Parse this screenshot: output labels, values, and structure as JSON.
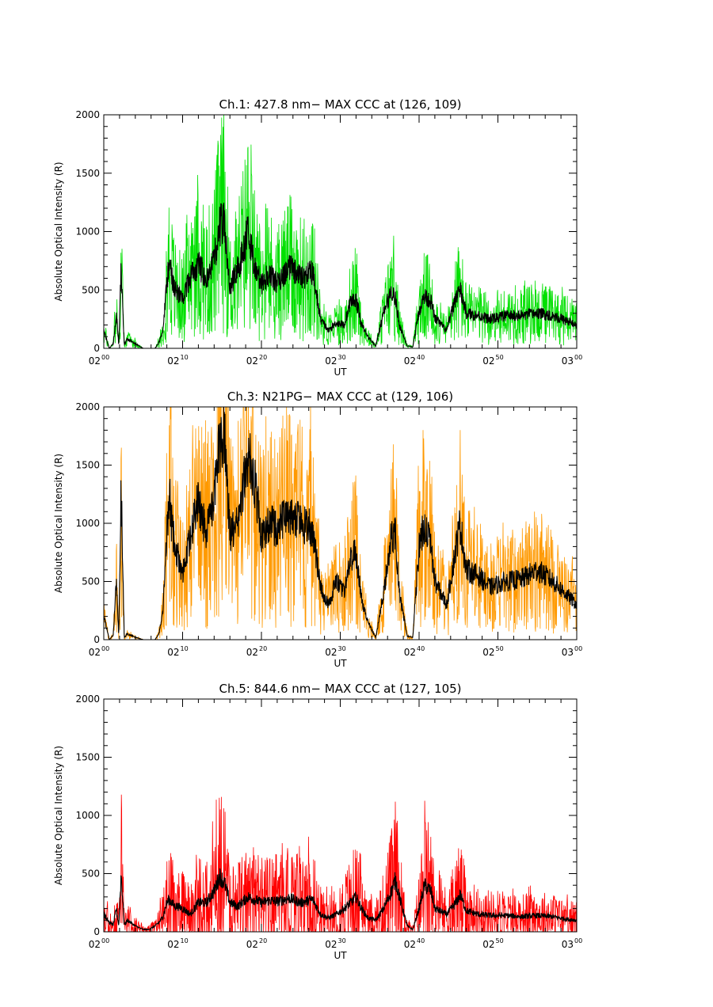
{
  "chart_data": [
    {
      "type": "line",
      "title": "Ch.1: 427.8 nm− MAX CCC at (126, 109)",
      "xlabel": "UT",
      "ylabel": "Absolute Optical Intensity (R)",
      "xlim_minutes": [
        0,
        60
      ],
      "ylim": [
        0,
        2000
      ],
      "yticks": [
        "0",
        "500",
        "1000",
        "1500",
        "2000"
      ],
      "xticks": [
        {
          "hour": "02",
          "min": "00"
        },
        {
          "hour": "02",
          "min": "10"
        },
        {
          "hour": "02",
          "min": "20"
        },
        {
          "hour": "02",
          "min": "30"
        },
        {
          "hour": "02",
          "min": "40"
        },
        {
          "hour": "02",
          "min": "50"
        },
        {
          "hour": "03",
          "min": "00"
        }
      ],
      "noise_color": "#00e000",
      "series": [
        {
          "name": "smoothed",
          "color": "#000000",
          "x": [
            0,
            0.7,
            1.2,
            1.6,
            1.9,
            2.2,
            2.6,
            3,
            4,
            5,
            5.7,
            6.5,
            7,
            7.5,
            8,
            8.3,
            8.6,
            9,
            9.3,
            10,
            11,
            12,
            13,
            14,
            14.7,
            15.3,
            16,
            17,
            18.3,
            19,
            20,
            21,
            22,
            23.5,
            25,
            26.5,
            27.5,
            28.5,
            29.5,
            30.5,
            31.3,
            32,
            32.7,
            33.5,
            34.5,
            35.5,
            36.5,
            37,
            37.5,
            38.5,
            39.2,
            40,
            40.7,
            41.5,
            42,
            43.5,
            44.7,
            45.2,
            46,
            47.5,
            49,
            51,
            53,
            55,
            57,
            58.5,
            60
          ],
          "values": [
            150,
            0,
            40,
            300,
            20,
            700,
            30,
            80,
            40,
            0,
            0,
            0,
            50,
            150,
            560,
            750,
            620,
            500,
            480,
            420,
            620,
            720,
            600,
            750,
            1050,
            1100,
            520,
            680,
            1000,
            750,
            550,
            640,
            550,
            700,
            600,
            650,
            250,
            150,
            220,
            200,
            400,
            420,
            200,
            100,
            20,
            300,
            500,
            420,
            200,
            20,
            10,
            320,
            450,
            400,
            260,
            150,
            450,
            500,
            300,
            280,
            250,
            280,
            280,
            300,
            280,
            240,
            200
          ]
        },
        {
          "name": "raw",
          "color": "#00e000",
          "x": [
            0,
            0.7,
            1.2,
            1.6,
            1.9,
            2.2,
            2.6,
            3,
            4,
            5,
            5.7,
            6.5,
            7,
            7.5,
            8,
            8.3,
            8.6,
            9,
            9.3,
            10,
            11,
            12,
            13,
            14,
            14.7,
            15.3,
            16,
            17,
            18.3,
            19,
            20,
            21,
            22,
            23.5,
            25,
            26.5,
            27.5,
            28.5,
            29.5,
            30.5,
            31.3,
            32,
            32.7,
            33.5,
            34.5,
            35.5,
            36.5,
            37,
            37.5,
            38.5,
            39.2,
            40,
            40.7,
            41.5,
            42,
            43.5,
            44.7,
            45.2,
            46,
            47.5,
            49,
            51,
            53,
            55,
            57,
            58.5,
            60
          ],
          "values": [
            150,
            0,
            40,
            300,
            20,
            700,
            30,
            80,
            40,
            0,
            0,
            0,
            50,
            150,
            560,
            750,
            620,
            500,
            480,
            420,
            620,
            720,
            600,
            750,
            1050,
            1100,
            520,
            680,
            1000,
            750,
            550,
            640,
            550,
            700,
            600,
            650,
            250,
            150,
            220,
            200,
            400,
            420,
            200,
            100,
            20,
            300,
            500,
            420,
            200,
            20,
            10,
            320,
            450,
            400,
            260,
            150,
            450,
            500,
            300,
            280,
            250,
            280,
            280,
            300,
            280,
            240,
            200
          ]
        }
      ]
    },
    {
      "type": "line",
      "title": "Ch.3: N21PG− MAX CCC at (129, 106)",
      "xlabel": "UT",
      "ylabel": "Absolute Optical Intensity (R)",
      "xlim_minutes": [
        0,
        60
      ],
      "ylim": [
        0,
        2000
      ],
      "yticks": [
        "0",
        "500",
        "1000",
        "1500",
        "2000"
      ],
      "xticks": [
        {
          "hour": "02",
          "min": "00"
        },
        {
          "hour": "02",
          "min": "10"
        },
        {
          "hour": "02",
          "min": "20"
        },
        {
          "hour": "02",
          "min": "30"
        },
        {
          "hour": "02",
          "min": "40"
        },
        {
          "hour": "02",
          "min": "50"
        },
        {
          "hour": "03",
          "min": "00"
        }
      ],
      "noise_color": "#ff9900",
      "series": [
        {
          "name": "smoothed",
          "color": "#000000",
          "x": [
            0,
            0.7,
            1.2,
            1.6,
            1.9,
            2.2,
            2.6,
            3,
            4,
            5,
            5.7,
            6.5,
            7,
            7.5,
            8,
            8.3,
            8.6,
            9,
            9.3,
            10,
            11,
            12,
            13,
            14,
            14.7,
            15.3,
            16,
            17,
            18.3,
            19,
            20,
            21,
            22,
            23.5,
            25,
            26.5,
            27.5,
            28.5,
            29.5,
            30.5,
            31.3,
            32,
            32.7,
            33.5,
            34.5,
            35.5,
            36.5,
            37,
            37.5,
            38.5,
            39.2,
            40,
            40.7,
            41.5,
            42,
            43.5,
            44.7,
            45.2,
            46,
            47.5,
            49,
            51,
            53,
            55,
            57,
            58.5,
            60
          ],
          "values": [
            200,
            0,
            40,
            500,
            20,
            1300,
            20,
            50,
            20,
            0,
            0,
            0,
            50,
            250,
            900,
            1300,
            1000,
            800,
            750,
            550,
            900,
            1200,
            900,
            1200,
            1700,
            1800,
            900,
            1000,
            1600,
            1450,
            900,
            1000,
            950,
            1100,
            1000,
            950,
            450,
            300,
            500,
            400,
            700,
            750,
            350,
            150,
            20,
            400,
            900,
            900,
            400,
            30,
            20,
            800,
            1000,
            800,
            500,
            300,
            800,
            1000,
            600,
            550,
            450,
            500,
            520,
            600,
            500,
            400,
            300
          ]
        },
        {
          "name": "raw",
          "color": "#ff9900",
          "x": [
            0,
            0.7,
            1.2,
            1.6,
            1.9,
            2.2,
            2.6,
            3,
            4,
            5,
            5.7,
            6.5,
            7,
            7.5,
            8,
            8.3,
            8.6,
            9,
            9.3,
            10,
            11,
            12,
            13,
            14,
            14.7,
            15.3,
            16,
            17,
            18.3,
            19,
            20,
            21,
            22,
            23.5,
            25,
            26.5,
            27.5,
            28.5,
            29.5,
            30.5,
            31.3,
            32,
            32.7,
            33.5,
            34.5,
            35.5,
            36.5,
            37,
            37.5,
            38.5,
            39.2,
            40,
            40.7,
            41.5,
            42,
            43.5,
            44.7,
            45.2,
            46,
            47.5,
            49,
            51,
            53,
            55,
            57,
            58.5,
            60
          ],
          "values": [
            200,
            0,
            40,
            500,
            20,
            1300,
            20,
            50,
            20,
            0,
            0,
            0,
            50,
            250,
            900,
            1300,
            1000,
            800,
            750,
            550,
            900,
            1200,
            900,
            1200,
            1700,
            1800,
            900,
            1000,
            1600,
            1450,
            900,
            1000,
            950,
            1100,
            1000,
            950,
            450,
            300,
            500,
            400,
            700,
            750,
            350,
            150,
            20,
            400,
            900,
            900,
            400,
            30,
            20,
            800,
            1000,
            800,
            500,
            300,
            800,
            1000,
            600,
            550,
            450,
            500,
            520,
            600,
            500,
            400,
            300
          ]
        }
      ]
    },
    {
      "type": "line",
      "title": "Ch.5: 844.6 nm− MAX CCC at (127, 105)",
      "xlabel": "UT",
      "ylabel": "Absolute Optical Intensity (R)",
      "xlim_minutes": [
        0,
        60
      ],
      "ylim": [
        0,
        2000
      ],
      "yticks": [
        "0",
        "500",
        "1000",
        "1500",
        "2000"
      ],
      "xticks": [
        {
          "hour": "02",
          "min": "00"
        },
        {
          "hour": "02",
          "min": "10"
        },
        {
          "hour": "02",
          "min": "20"
        },
        {
          "hour": "02",
          "min": "30"
        },
        {
          "hour": "02",
          "min": "40"
        },
        {
          "hour": "02",
          "min": "50"
        },
        {
          "hour": "03",
          "min": "00"
        }
      ],
      "noise_color": "#ff0000",
      "series": [
        {
          "name": "smoothed",
          "color": "#000000",
          "x": [
            0,
            0.7,
            1.2,
            1.6,
            1.9,
            2.2,
            2.6,
            3,
            4,
            5,
            5.7,
            6.5,
            7,
            7.5,
            8,
            8.3,
            8.6,
            9,
            9.3,
            10,
            11,
            12,
            13,
            14,
            14.7,
            15.3,
            16,
            17,
            18.3,
            19,
            20,
            21,
            22,
            23.5,
            25,
            26.5,
            27.5,
            28.5,
            29.5,
            30.5,
            31.3,
            32,
            32.7,
            33.5,
            34.5,
            35.5,
            36.5,
            37,
            37.5,
            38.5,
            39.2,
            40,
            40.7,
            41.5,
            42,
            43.5,
            44.7,
            45.2,
            46,
            47.5,
            49,
            51,
            53,
            55,
            57,
            58.5,
            60
          ],
          "values": [
            150,
            80,
            60,
            200,
            50,
            500,
            60,
            100,
            50,
            20,
            20,
            50,
            80,
            130,
            250,
            280,
            250,
            220,
            220,
            200,
            150,
            250,
            250,
            350,
            480,
            420,
            250,
            220,
            300,
            280,
            250,
            270,
            260,
            290,
            250,
            280,
            150,
            120,
            150,
            200,
            250,
            300,
            200,
            120,
            100,
            200,
            350,
            450,
            300,
            50,
            20,
            200,
            400,
            350,
            200,
            150,
            250,
            320,
            180,
            150,
            140,
            140,
            130,
            140,
            130,
            110,
            100
          ]
        },
        {
          "name": "raw",
          "color": "#ff0000",
          "x": [
            0,
            0.7,
            1.2,
            1.6,
            1.9,
            2.2,
            2.6,
            3,
            4,
            5,
            5.7,
            6.5,
            7,
            7.5,
            8,
            8.3,
            8.6,
            9,
            9.3,
            10,
            11,
            12,
            13,
            14,
            14.7,
            15.3,
            16,
            17,
            18.3,
            19,
            20,
            21,
            22,
            23.5,
            25,
            26.5,
            27.5,
            28.5,
            29.5,
            30.5,
            31.3,
            32,
            32.7,
            33.5,
            34.5,
            35.5,
            36.5,
            37,
            37.5,
            38.5,
            39.2,
            40,
            40.7,
            41.5,
            42,
            43.5,
            44.7,
            45.2,
            46,
            47.5,
            49,
            51,
            53,
            55,
            57,
            58.5,
            60
          ],
          "values": [
            150,
            80,
            60,
            200,
            50,
            500,
            60,
            100,
            50,
            20,
            20,
            50,
            80,
            130,
            250,
            280,
            250,
            220,
            220,
            200,
            150,
            250,
            250,
            350,
            480,
            420,
            250,
            220,
            300,
            280,
            250,
            270,
            260,
            290,
            250,
            280,
            150,
            120,
            150,
            200,
            250,
            300,
            200,
            120,
            100,
            200,
            350,
            450,
            300,
            50,
            20,
            200,
            400,
            350,
            200,
            150,
            250,
            320,
            180,
            150,
            140,
            140,
            130,
            140,
            130,
            110,
            100
          ]
        }
      ]
    }
  ]
}
